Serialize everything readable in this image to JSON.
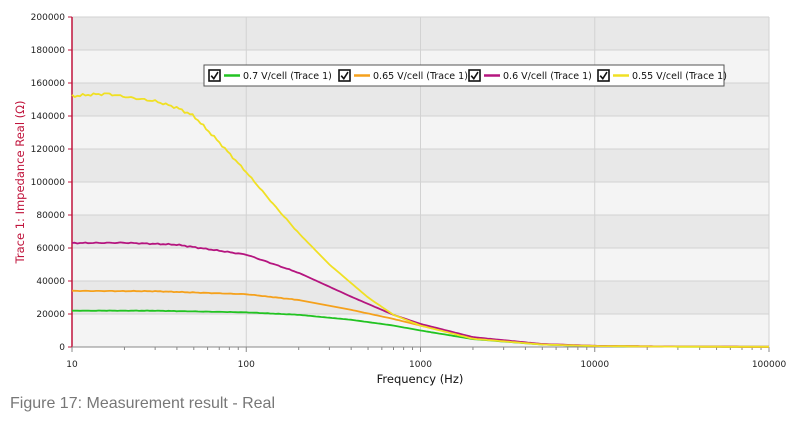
{
  "chart_data": {
    "type": "line",
    "xlabel": "Frequency (Hz)",
    "ylabel": "Trace 1: Impedance Real (Ω)",
    "xscale": "log",
    "xlim": [
      10,
      100000
    ],
    "ylim": [
      0,
      200000
    ],
    "x_ticks": [
      "10",
      "100",
      "1000",
      "10000",
      "100000"
    ],
    "y_ticks": [
      "0",
      "20000",
      "40000",
      "60000",
      "80000",
      "100000",
      "120000",
      "140000",
      "160000",
      "180000",
      "200000"
    ],
    "grid": true,
    "legend_position": "top",
    "series": [
      {
        "name": "0.7 V/cell (Trace 1)",
        "color": "#22c322",
        "x": [
          10,
          30,
          100,
          200,
          400,
          700,
          1000,
          2000,
          5000,
          10000,
          30000,
          100000
        ],
        "y": [
          22000,
          22000,
          21000,
          19500,
          16500,
          13000,
          10000,
          4800,
          1500,
          600,
          200,
          100
        ]
      },
      {
        "name": "0.65 V/cell (Trace 1)",
        "color": "#f5a11c",
        "x": [
          10,
          30,
          100,
          200,
          400,
          700,
          1000,
          2000,
          5000,
          10000,
          30000,
          100000
        ],
        "y": [
          34000,
          33800,
          32000,
          28500,
          22500,
          17000,
          13000,
          5500,
          1700,
          700,
          250,
          100
        ]
      },
      {
        "name": "0.6 V/cell (Trace 1)",
        "color": "#b5157f",
        "x": [
          10,
          20,
          40,
          100,
          200,
          400,
          700,
          1000,
          2000,
          5000,
          10000,
          30000,
          100000
        ],
        "y": [
          63000,
          63200,
          62000,
          56000,
          45000,
          30500,
          19500,
          14000,
          6000,
          1800,
          700,
          250,
          100
        ]
      },
      {
        "name": "0.55 V/cell (Trace 1)",
        "color": "#f0e024",
        "x": [
          10,
          13,
          16,
          22,
          30,
          40,
          50,
          70,
          100,
          150,
          200,
          300,
          500,
          700,
          1000,
          2000,
          5000,
          10000,
          30000,
          100000
        ],
        "y": [
          152000,
          153000,
          153500,
          151000,
          149000,
          145000,
          140000,
          124000,
          106000,
          84000,
          69000,
          50000,
          30000,
          19500,
          13000,
          5000,
          1500,
          600,
          200,
          100
        ]
      }
    ]
  },
  "figure": {
    "caption": "Figure 17: Measurement result - Real"
  }
}
